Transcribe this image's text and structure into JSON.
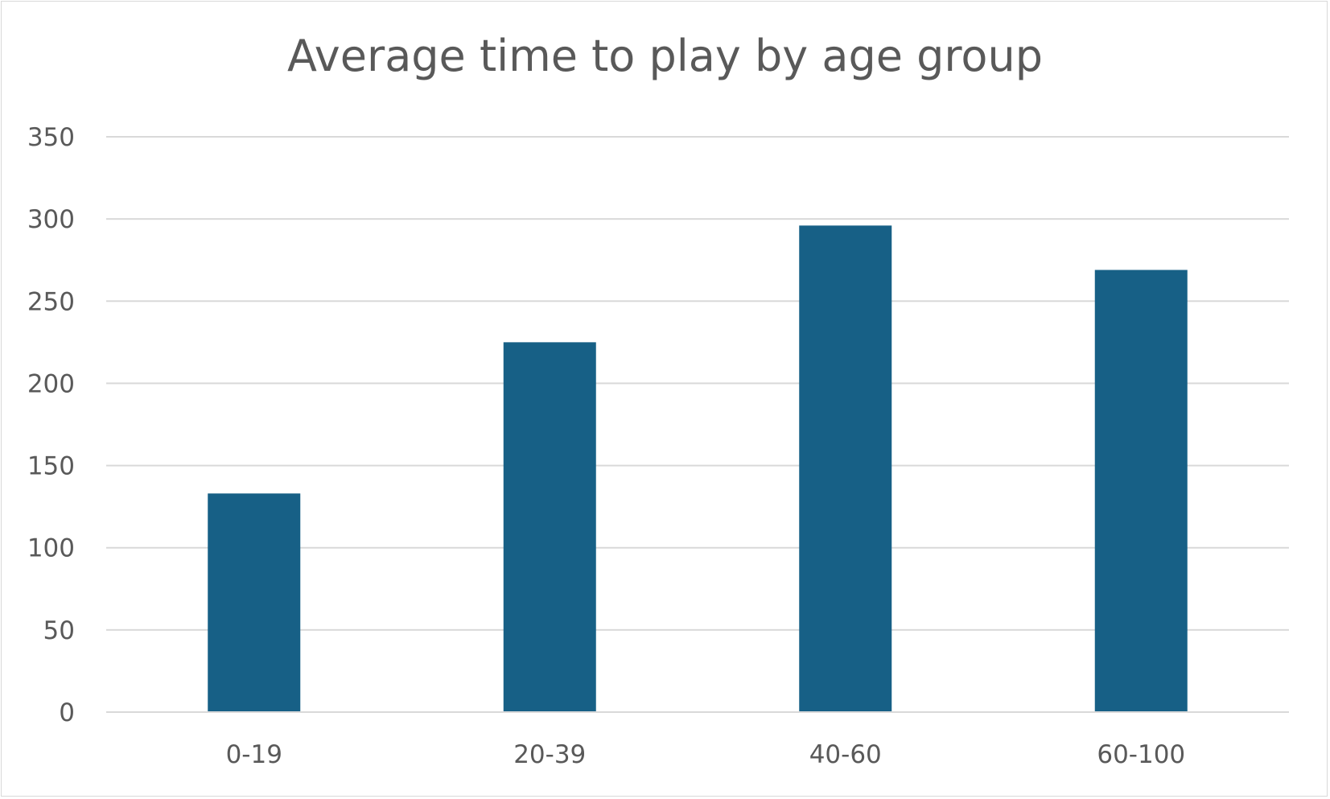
{
  "chart_data": {
    "type": "bar",
    "title": "Average time to play by age group",
    "categories": [
      "0-19",
      "20-39",
      "40-60",
      "60-100"
    ],
    "values": [
      133,
      225,
      296,
      269
    ],
    "ylim": [
      0,
      350
    ],
    "yticks": [
      0,
      50,
      100,
      150,
      200,
      250,
      300,
      350
    ],
    "xlabel": "",
    "ylabel": "",
    "grid": true,
    "legend": "none",
    "bar_color": "#176086",
    "grid_color": "#d9d9d9",
    "text_color": "#595959"
  }
}
